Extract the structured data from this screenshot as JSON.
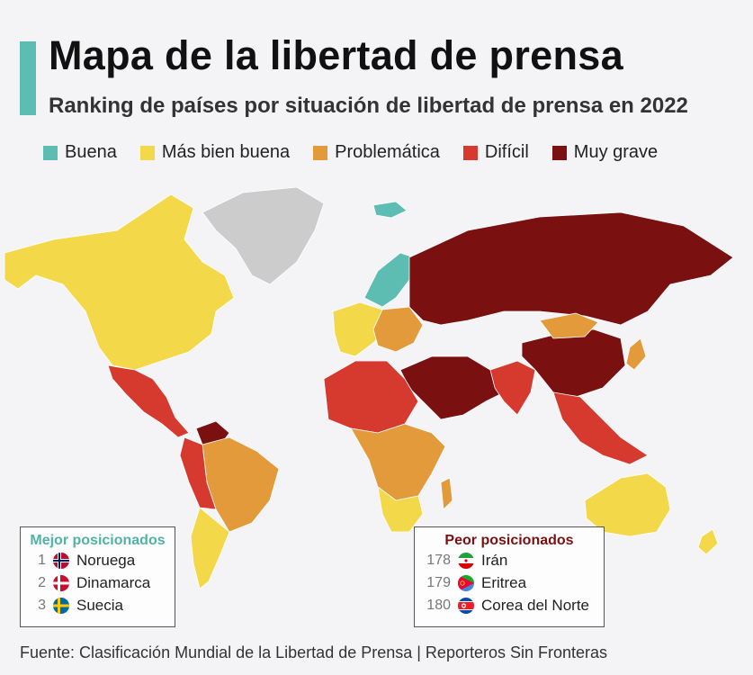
{
  "header": {
    "title": "Mapa de la libertad de prensa",
    "subtitle": "Ranking de países por situación de libertad de prensa en 2022"
  },
  "legend": [
    {
      "label": "Buena",
      "color": "#5dbdb2"
    },
    {
      "label": "Más bien buena",
      "color": "#f3d94a"
    },
    {
      "label": "Problemática",
      "color": "#e39a3b"
    },
    {
      "label": "Difícil",
      "color": "#d63a2f"
    },
    {
      "label": "Muy grave",
      "color": "#7a1010"
    }
  ],
  "best": {
    "title": "Mejor posicionados",
    "items": [
      {
        "rank": "1",
        "country": "Noruega",
        "flag": "norway-flag-icon"
      },
      {
        "rank": "2",
        "country": "Dinamarca",
        "flag": "denmark-flag-icon"
      },
      {
        "rank": "3",
        "country": "Suecia",
        "flag": "sweden-flag-icon"
      }
    ]
  },
  "worst": {
    "title": "Peor posicionados",
    "items": [
      {
        "rank": "178",
        "country": "Irán",
        "flag": "iran-flag-icon"
      },
      {
        "rank": "179",
        "country": "Eritrea",
        "flag": "eritrea-flag-icon"
      },
      {
        "rank": "180",
        "country": "Corea del Norte",
        "flag": "north-korea-flag-icon"
      }
    ]
  },
  "source": "Fuente: Clasificación Mundial de la Libertad de Prensa | Reporteros Sin Fronteras",
  "map": {
    "no_data_color": "#cccccc",
    "regions": [
      {
        "name": "greenland",
        "level": "none"
      },
      {
        "name": "north-america",
        "level": "Más bien buena"
      },
      {
        "name": "mexico-central-america",
        "level": "Difícil"
      },
      {
        "name": "venezuela",
        "level": "Muy grave"
      },
      {
        "name": "south-america-east",
        "level": "Problemática"
      },
      {
        "name": "south-america-west",
        "level": "Difícil"
      },
      {
        "name": "southern-cone",
        "level": "Más bien buena"
      },
      {
        "name": "scandinavia",
        "level": "Buena"
      },
      {
        "name": "western-europe",
        "level": "Más bien buena"
      },
      {
        "name": "eastern-europe",
        "level": "Problemática"
      },
      {
        "name": "russia",
        "level": "Muy grave"
      },
      {
        "name": "middle-east",
        "level": "Muy grave"
      },
      {
        "name": "north-africa",
        "level": "Difícil"
      },
      {
        "name": "central-africa",
        "level": "Problemática"
      },
      {
        "name": "southern-africa",
        "level": "Más bien buena"
      },
      {
        "name": "india",
        "level": "Difícil"
      },
      {
        "name": "china",
        "level": "Muy grave"
      },
      {
        "name": "mongolia",
        "level": "Problemática"
      },
      {
        "name": "southeast-asia",
        "level": "Difícil"
      },
      {
        "name": "japan",
        "level": "Problemática"
      },
      {
        "name": "australia",
        "level": "Más bien buena"
      },
      {
        "name": "new-zealand",
        "level": "Más bien buena"
      }
    ]
  }
}
